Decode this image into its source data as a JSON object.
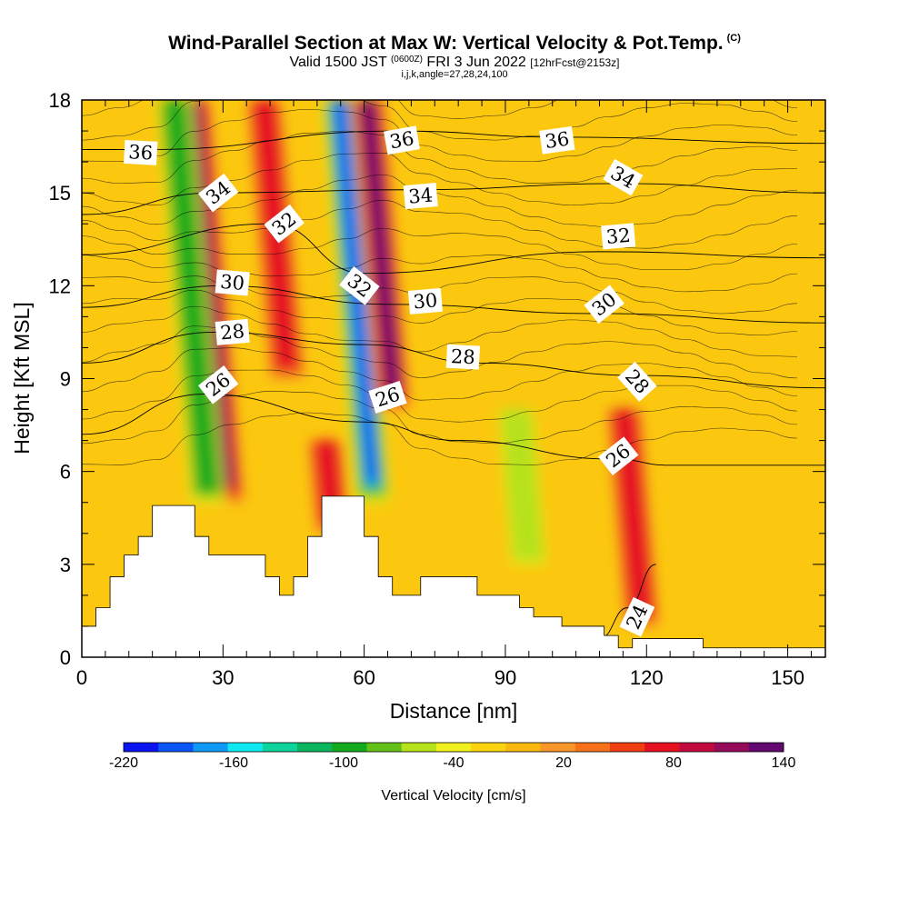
{
  "title": {
    "main": "Wind-Parallel Section at Max W: Vertical Velocity & Pot.Temp.",
    "mark": "(C)",
    "valid_pre": "Valid 1500 JST",
    "valid_z": "(0600Z)",
    "valid_post": "FRI 3 Jun 2022",
    "fcst": "[12hrFcst@2153z]",
    "params": "i,j,k,angle=27,28,24,100"
  },
  "chart_data": {
    "type": "heatmap",
    "xlabel": "Distance [nm]",
    "ylabel": "Height [Kft MSL]",
    "xlim": [
      0,
      158
    ],
    "ylim": [
      0,
      18
    ],
    "xticks": [
      0,
      30,
      60,
      90,
      120,
      150
    ],
    "yticks": [
      0,
      3,
      6,
      9,
      12,
      15,
      18
    ],
    "colorbar": {
      "label": "Vertical Velocity [cm/s]",
      "ticks": [
        -220,
        -160,
        -100,
        -40,
        20,
        80,
        140
      ],
      "bins": [
        -220,
        -200,
        -180,
        -160,
        -140,
        -120,
        -100,
        -80,
        -60,
        -40,
        -20,
        0,
        20,
        40,
        60,
        80,
        100,
        120,
        140
      ],
      "colors": [
        "#0a14f0",
        "#0a55f5",
        "#0f9af5",
        "#10e8f0",
        "#0ed39a",
        "#0ab55e",
        "#14aa1e",
        "#62c018",
        "#b6e21a",
        "#f0f01e",
        "#fbd30e",
        "#f9b810",
        "#f8962a",
        "#f6711a",
        "#ef3e12",
        "#e51020",
        "#c30a3e",
        "#960a5a",
        "#62086e"
      ]
    },
    "velocity_features": [
      {
        "type": "updraft",
        "x": 27,
        "top": 18,
        "bottom": 5,
        "peak": 120
      },
      {
        "type": "downdraft",
        "x": 23,
        "top": 18,
        "bottom": 5,
        "peak": -100
      },
      {
        "type": "updraft",
        "x": 42,
        "top": 18,
        "bottom": 9,
        "peak": 80
      },
      {
        "type": "updraft",
        "x": 49,
        "top": 7,
        "bottom": 4,
        "peak": 80
      },
      {
        "type": "downdraft",
        "x": 58,
        "top": 18,
        "bottom": 5,
        "peak": -200
      },
      {
        "type": "updraft",
        "x": 64,
        "top": 18,
        "bottom": 8,
        "peak": 140
      },
      {
        "type": "downdraft",
        "x": 90,
        "top": 8,
        "bottom": 3,
        "peak": -60
      },
      {
        "type": "updraft",
        "x": 113,
        "top": 8,
        "bottom": 1,
        "peak": 80
      }
    ],
    "terrain": {
      "x": [
        0,
        3,
        3,
        6,
        6,
        9,
        9,
        12,
        12,
        15,
        15,
        24,
        24,
        27,
        27,
        39,
        39,
        42,
        42,
        45,
        45,
        48,
        48,
        51,
        51,
        60,
        60,
        63,
        63,
        66,
        66,
        72,
        72,
        84,
        84,
        93,
        93,
        96,
        96,
        102,
        102,
        111,
        111,
        114,
        114,
        117,
        117,
        132,
        132,
        141,
        141,
        158
      ],
      "y": [
        1,
        1,
        1.6,
        1.6,
        2.6,
        2.6,
        3.3,
        3.3,
        3.9,
        3.9,
        4.9,
        4.9,
        3.9,
        3.9,
        3.3,
        3.3,
        2.6,
        2.6,
        2.0,
        2.0,
        2.6,
        2.6,
        3.9,
        3.9,
        5.2,
        5.2,
        3.9,
        3.9,
        2.6,
        2.6,
        2.0,
        2.0,
        2.6,
        2.6,
        2.0,
        2.0,
        1.6,
        1.6,
        1.3,
        1.3,
        1.0,
        1.0,
        0.7,
        0.7,
        0.3,
        0.3,
        0.6,
        0.6,
        0.3,
        0.3,
        0.3,
        0.3
      ]
    },
    "theta_isolines": [
      {
        "label": "24",
        "y_at_x": [
          [
            110,
            0.6
          ],
          [
            116,
            1.6
          ],
          [
            122,
            3.0
          ]
        ]
      },
      {
        "label": "26",
        "y_at_x": [
          [
            0,
            7.2
          ],
          [
            26,
            8.5
          ],
          [
            60,
            7.6
          ],
          [
            80,
            7.0
          ],
          [
            113,
            6.4
          ],
          [
            125,
            6.2
          ],
          [
            158,
            6.2
          ]
        ]
      },
      {
        "label": "28",
        "y_at_x": [
          [
            0,
            9.5
          ],
          [
            28,
            10.5
          ],
          [
            60,
            10.1
          ],
          [
            85,
            9.5
          ],
          [
            118,
            9.1
          ],
          [
            158,
            8.7
          ]
        ]
      },
      {
        "label": "30",
        "y_at_x": [
          [
            0,
            11.3
          ],
          [
            30,
            12.0
          ],
          [
            65,
            11.4
          ],
          [
            110,
            11.1
          ],
          [
            158,
            10.8
          ]
        ]
      },
      {
        "label": "32",
        "y_at_x": [
          [
            0,
            13.0
          ],
          [
            40,
            14.0
          ],
          [
            60,
            12.4
          ],
          [
            110,
            13.1
          ],
          [
            158,
            12.9
          ]
        ]
      },
      {
        "label": "34",
        "y_at_x": [
          [
            0,
            14.3
          ],
          [
            28,
            15.0
          ],
          [
            70,
            15.1
          ],
          [
            115,
            15.3
          ],
          [
            158,
            15.0
          ]
        ]
      },
      {
        "label": "36",
        "y_at_x": [
          [
            0,
            16.4
          ],
          [
            14,
            16.4
          ],
          [
            67,
            17.0
          ],
          [
            101,
            16.8
          ],
          [
            158,
            16.6
          ]
        ]
      }
    ],
    "contour_labels": [
      {
        "text": "36",
        "x": 12.5,
        "y": 16.3,
        "angle": 3
      },
      {
        "text": "34",
        "x": 29,
        "y": 15.0,
        "angle": -38
      },
      {
        "text": "32",
        "x": 43,
        "y": 14.0,
        "angle": -38
      },
      {
        "text": "30",
        "x": 32,
        "y": 12.1,
        "angle": 5
      },
      {
        "text": "28",
        "x": 32,
        "y": 10.5,
        "angle": -5
      },
      {
        "text": "26",
        "x": 29,
        "y": 8.8,
        "angle": -38
      },
      {
        "text": "36",
        "x": 68,
        "y": 16.7,
        "angle": -10
      },
      {
        "text": "34",
        "x": 72,
        "y": 14.9,
        "angle": -5
      },
      {
        "text": "32",
        "x": 59,
        "y": 12.0,
        "angle": 38
      },
      {
        "text": "30",
        "x": 73,
        "y": 11.5,
        "angle": -5
      },
      {
        "text": "26",
        "x": 65,
        "y": 8.4,
        "angle": -18
      },
      {
        "text": "28",
        "x": 81,
        "y": 9.7,
        "angle": 3
      },
      {
        "text": "36",
        "x": 101,
        "y": 16.7,
        "angle": -8
      },
      {
        "text": "34",
        "x": 115,
        "y": 15.5,
        "angle": 30
      },
      {
        "text": "32",
        "x": 114,
        "y": 13.6,
        "angle": -5
      },
      {
        "text": "30",
        "x": 111,
        "y": 11.4,
        "angle": -38
      },
      {
        "text": "28",
        "x": 118,
        "y": 8.9,
        "angle": 48
      },
      {
        "text": "26",
        "x": 114,
        "y": 6.5,
        "angle": -38
      },
      {
        "text": "24",
        "x": 118,
        "y": 1.3,
        "angle": -65
      }
    ]
  }
}
